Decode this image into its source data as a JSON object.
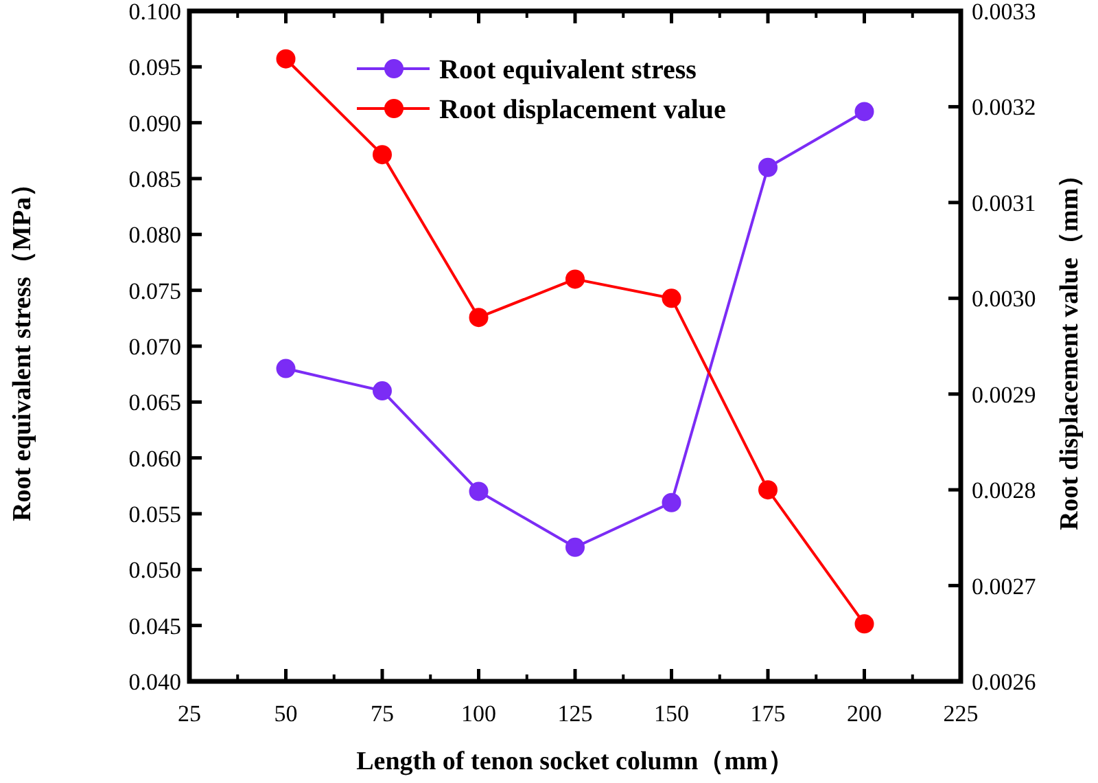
{
  "chart_data": {
    "type": "line",
    "xlabel": "Length of tenon socket column（mm）",
    "ylabel": "Root equivalent stress（MPa）",
    "y2label": "Root displacement value（mm）",
    "x": [
      50,
      75,
      100,
      125,
      150,
      175,
      200
    ],
    "xlim": [
      25,
      225
    ],
    "xticks": [
      25,
      50,
      75,
      100,
      125,
      150,
      175,
      200,
      225
    ],
    "ylim": [
      0.04,
      0.1
    ],
    "yticks": [
      {
        "value": 0.04,
        "label": "0.040"
      },
      {
        "value": 0.045,
        "label": "0.045"
      },
      {
        "value": 0.05,
        "label": "0.050"
      },
      {
        "value": 0.055,
        "label": "0.055"
      },
      {
        "value": 0.06,
        "label": "0.060"
      },
      {
        "value": 0.065,
        "label": "0.065"
      },
      {
        "value": 0.07,
        "label": "0.070"
      },
      {
        "value": 0.075,
        "label": "0.075"
      },
      {
        "value": 0.08,
        "label": "0.080"
      },
      {
        "value": 0.085,
        "label": "0.085"
      },
      {
        "value": 0.09,
        "label": "0.090"
      },
      {
        "value": 0.095,
        "label": "0.095"
      },
      {
        "value": 0.1,
        "label": "0.100"
      }
    ],
    "y2lim": [
      0.0026,
      0.0033
    ],
    "y2ticks": [
      0.0026,
      0.0027,
      0.0028,
      0.0029,
      {
        "value": 0.003,
        "label": "0.0030"
      },
      0.0031,
      0.0032,
      0.0033
    ],
    "series": [
      {
        "name": "Root equivalent stress",
        "color": "#7b2cf5",
        "values": [
          0.068,
          0.066,
          0.057,
          0.052,
          0.056,
          0.086,
          0.091
        ]
      },
      {
        "name": "Root displacement value",
        "color": "#ff0000",
        "axis": "y2",
        "values": [
          0.00325,
          0.00315,
          0.00298,
          0.00302,
          0.003,
          0.0028,
          0.00266
        ]
      }
    ],
    "legend": "top",
    "marker": "circle",
    "line_style": "solid"
  }
}
